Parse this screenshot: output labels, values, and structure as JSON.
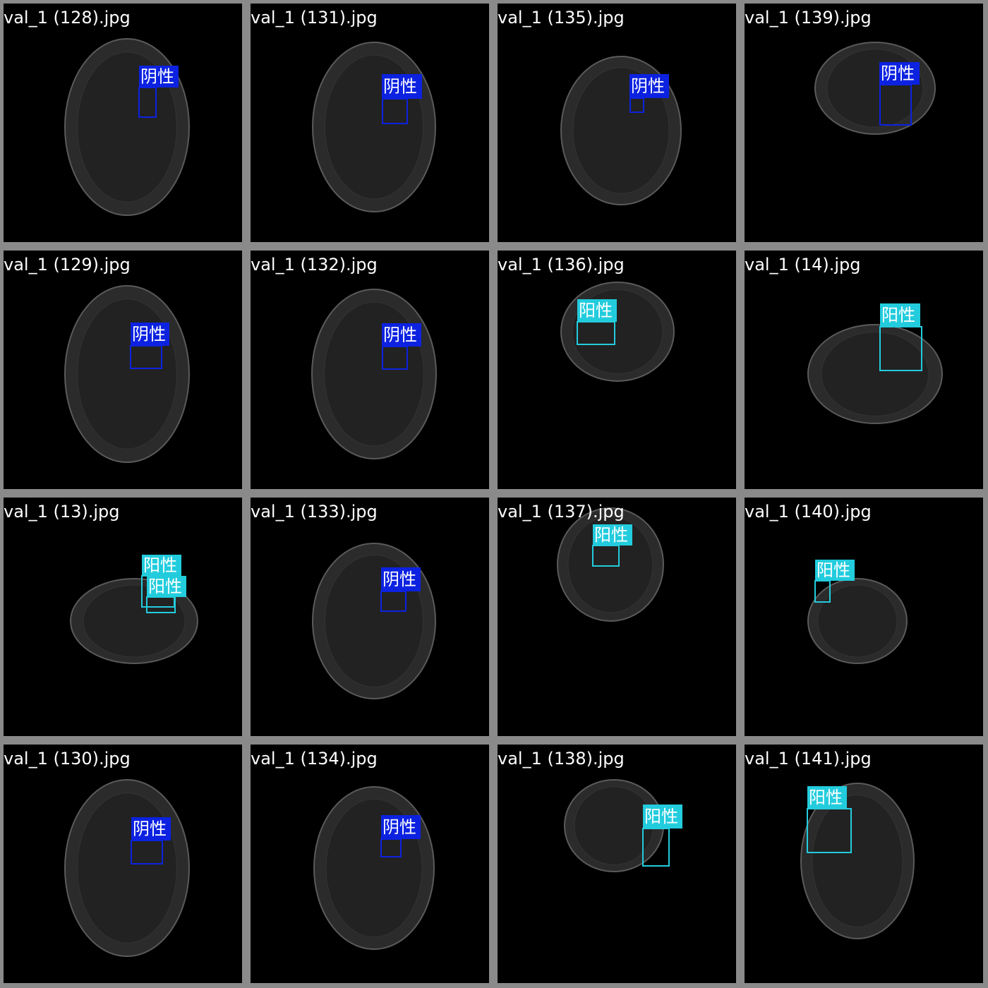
{
  "tiles": [
    {
      "filename": "val_1 (128).jpg",
      "detections": [
        {
          "label": "阴性",
          "color": "#0c22e0"
        }
      ]
    },
    {
      "filename": "val_1 (131).jpg",
      "detections": [
        {
          "label": "阴性",
          "color": "#0c22e0"
        }
      ]
    },
    {
      "filename": "val_1 (135).jpg",
      "detections": [
        {
          "label": "阴性",
          "color": "#0c22e0"
        }
      ]
    },
    {
      "filename": "val_1 (139).jpg",
      "detections": [
        {
          "label": "阴性",
          "color": "#0c22e0"
        }
      ]
    },
    {
      "filename": "val_1 (129).jpg",
      "detections": [
        {
          "label": "阴性",
          "color": "#0c22e0"
        }
      ]
    },
    {
      "filename": "val_1 (132).jpg",
      "detections": [
        {
          "label": "阴性",
          "color": "#0c22e0"
        }
      ]
    },
    {
      "filename": "val_1 (136).jpg",
      "detections": [
        {
          "label": "阳性",
          "color": "#22ccdd"
        }
      ]
    },
    {
      "filename": "val_1 (14).jpg",
      "detections": [
        {
          "label": "阳性",
          "color": "#22ccdd"
        }
      ]
    },
    {
      "filename": "val_1 (13).jpg",
      "detections": [
        {
          "label": "阳性",
          "color": "#22ccdd"
        },
        {
          "label": "阳性",
          "color": "#22ccdd"
        }
      ]
    },
    {
      "filename": "val_1 (133).jpg",
      "detections": [
        {
          "label": "阴性",
          "color": "#0c22e0"
        }
      ]
    },
    {
      "filename": "val_1 (137).jpg",
      "detections": [
        {
          "label": "阳性",
          "color": "#22ccdd"
        }
      ]
    },
    {
      "filename": "val_1 (140).jpg",
      "detections": [
        {
          "label": "阳性",
          "color": "#22ccdd"
        }
      ]
    },
    {
      "filename": "val_1 (130).jpg",
      "detections": [
        {
          "label": "阴性",
          "color": "#0c22e0"
        }
      ]
    },
    {
      "filename": "val_1 (134).jpg",
      "detections": [
        {
          "label": "阴性",
          "color": "#0c22e0"
        }
      ]
    },
    {
      "filename": "val_1 (138).jpg",
      "detections": [
        {
          "label": "阳性",
          "color": "#22ccdd"
        }
      ]
    },
    {
      "filename": "val_1 (141).jpg",
      "detections": [
        {
          "label": "阳性",
          "color": "#22ccdd"
        }
      ]
    }
  ]
}
